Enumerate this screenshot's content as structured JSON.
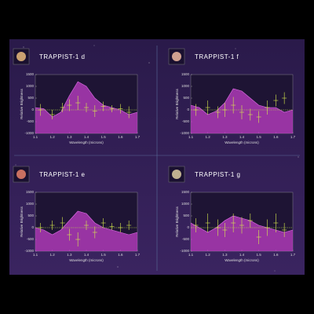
{
  "chart_data": [
    {
      "type": "spectrum",
      "title": "TRAPPIST-1 d",
      "xlabel": "Wavelength (microns)",
      "ylabel": "Relative Brightness",
      "xlim": [
        1.1,
        1.7
      ],
      "ylim": [
        -1000,
        1500
      ],
      "xticks": [
        1.1,
        1.2,
        1.3,
        1.4,
        1.5,
        1.6,
        1.7
      ],
      "yticks": [
        -1000,
        -500,
        0,
        500,
        1000,
        1500
      ],
      "series": [
        {
          "kind": "area",
          "color": "#c23fc8",
          "x": [
            1.1,
            1.15,
            1.2,
            1.25,
            1.3,
            1.35,
            1.4,
            1.45,
            1.5,
            1.55,
            1.6,
            1.65,
            1.7
          ],
          "values": [
            100,
            50,
            -300,
            -100,
            600,
            1200,
            1000,
            500,
            200,
            100,
            0,
            -200,
            -100
          ]
        },
        {
          "kind": "points",
          "color": "#d8ec4c",
          "x": [
            1.13,
            1.2,
            1.26,
            1.3,
            1.35,
            1.4,
            1.45,
            1.5,
            1.55,
            1.6,
            1.65
          ],
          "values": [
            0,
            -200,
            100,
            200,
            300,
            100,
            -50,
            150,
            50,
            50,
            -100
          ],
          "errors": [
            250,
            200,
            200,
            250,
            300,
            200,
            250,
            200,
            150,
            200,
            250
          ]
        }
      ]
    },
    {
      "type": "spectrum",
      "title": "TRAPPIST-1 f",
      "xlabel": "Wavelength (microns)",
      "ylabel": "Relative Brightness",
      "xlim": [
        1.1,
        1.7
      ],
      "ylim": [
        -1000,
        1500
      ],
      "xticks": [
        1.1,
        1.2,
        1.3,
        1.4,
        1.5,
        1.6,
        1.7
      ],
      "yticks": [
        -1000,
        -500,
        0,
        500,
        1000,
        1500
      ],
      "series": [
        {
          "kind": "area",
          "color": "#c23fc8",
          "x": [
            1.1,
            1.15,
            1.2,
            1.25,
            1.3,
            1.35,
            1.4,
            1.45,
            1.5,
            1.55,
            1.6,
            1.65,
            1.7
          ],
          "values": [
            200,
            100,
            -200,
            -50,
            300,
            900,
            800,
            500,
            200,
            100,
            100,
            -100,
            0
          ]
        },
        {
          "kind": "points",
          "color": "#d8ec4c",
          "x": [
            1.13,
            1.2,
            1.26,
            1.3,
            1.35,
            1.4,
            1.45,
            1.5,
            1.55,
            1.6,
            1.65
          ],
          "values": [
            0,
            100,
            -100,
            0,
            200,
            -100,
            -200,
            -300,
            100,
            400,
            500
          ],
          "errors": [
            250,
            300,
            250,
            300,
            350,
            300,
            250,
            250,
            300,
            250,
            250
          ]
        }
      ]
    },
    {
      "type": "spectrum",
      "title": "TRAPPIST-1 e",
      "xlabel": "Wavelength (microns)",
      "ylabel": "Relative Brightness",
      "xlim": [
        1.1,
        1.7
      ],
      "ylim": [
        -1000,
        1500
      ],
      "xticks": [
        1.1,
        1.2,
        1.3,
        1.4,
        1.5,
        1.6,
        1.7
      ],
      "yticks": [
        -1000,
        -500,
        0,
        500,
        1000,
        1500
      ],
      "series": [
        {
          "kind": "area",
          "color": "#c23fc8",
          "x": [
            1.1,
            1.15,
            1.2,
            1.25,
            1.3,
            1.35,
            1.4,
            1.45,
            1.5,
            1.55,
            1.6,
            1.65,
            1.7
          ],
          "values": [
            0,
            -100,
            -300,
            -100,
            300,
            700,
            600,
            200,
            0,
            -100,
            -200,
            -300,
            -200
          ]
        },
        {
          "kind": "points",
          "color": "#d8ec4c",
          "x": [
            1.13,
            1.2,
            1.26,
            1.3,
            1.35,
            1.4,
            1.45,
            1.5,
            1.55,
            1.6,
            1.65
          ],
          "values": [
            0,
            100,
            200,
            -300,
            -500,
            100,
            -200,
            200,
            50,
            0,
            100
          ],
          "errors": [
            200,
            200,
            250,
            250,
            300,
            200,
            250,
            200,
            150,
            200,
            200
          ]
        }
      ]
    },
    {
      "type": "spectrum",
      "title": "TRAPPIST-1 g",
      "xlabel": "Wavelength (microns)",
      "ylabel": "Relative Brightness",
      "xlim": [
        1.1,
        1.7
      ],
      "ylim": [
        -1000,
        1500
      ],
      "xticks": [
        1.1,
        1.2,
        1.3,
        1.4,
        1.5,
        1.6,
        1.7
      ],
      "yticks": [
        -1000,
        -500,
        0,
        500,
        1000,
        1500
      ],
      "series": [
        {
          "kind": "area",
          "color": "#c23fc8",
          "x": [
            1.1,
            1.15,
            1.2,
            1.25,
            1.3,
            1.35,
            1.4,
            1.45,
            1.5,
            1.55,
            1.6,
            1.65,
            1.7
          ],
          "values": [
            200,
            0,
            -200,
            0,
            300,
            500,
            400,
            300,
            100,
            0,
            -100,
            -200,
            -100
          ]
        },
        {
          "kind": "points",
          "color": "#d8ec4c",
          "x": [
            1.13,
            1.2,
            1.26,
            1.3,
            1.35,
            1.4,
            1.45,
            1.5,
            1.55,
            1.6,
            1.65
          ],
          "values": [
            100,
            200,
            0,
            -100,
            200,
            100,
            300,
            -400,
            0,
            200,
            -100
          ],
          "errors": [
            300,
            400,
            350,
            300,
            400,
            350,
            300,
            300,
            350,
            400,
            300
          ]
        }
      ]
    }
  ]
}
